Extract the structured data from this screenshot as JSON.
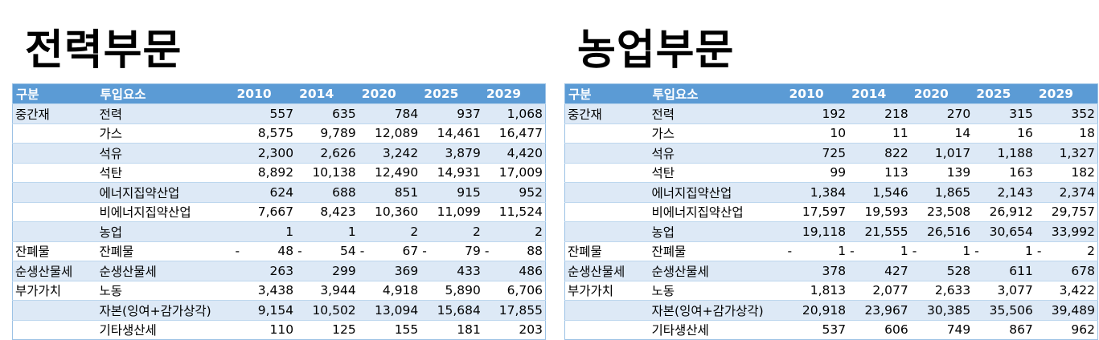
{
  "years": [
    "2010",
    "2014",
    "2020",
    "2025",
    "2029"
  ],
  "headers": {
    "category": "구분",
    "item": "투입요소"
  },
  "panels": [
    {
      "title": "전력부문",
      "rows": [
        {
          "category": "중간재",
          "item": "전력",
          "values": [
            "557",
            "635",
            "784",
            "937",
            "1,068"
          ]
        },
        {
          "category": "",
          "item": "가스",
          "values": [
            "8,575",
            "9,789",
            "12,089",
            "14,461",
            "16,477"
          ]
        },
        {
          "category": "",
          "item": "석유",
          "values": [
            "2,300",
            "2,626",
            "3,242",
            "3,879",
            "4,420"
          ]
        },
        {
          "category": "",
          "item": "석탄",
          "values": [
            "8,892",
            "10,138",
            "12,490",
            "14,931",
            "17,009"
          ]
        },
        {
          "category": "",
          "item": "에너지집약산업",
          "values": [
            "624",
            "688",
            "851",
            "915",
            "952"
          ]
        },
        {
          "category": "",
          "item": "비에너지집약산업",
          "values": [
            "7,667",
            "8,423",
            "10,360",
            "11,099",
            "11,524"
          ]
        },
        {
          "category": "",
          "item": "농업",
          "values": [
            "1",
            "1",
            "2",
            "2",
            "2"
          ]
        },
        {
          "category": "잔폐물",
          "item": "잔폐물",
          "negative": true,
          "values": [
            "48",
            "54",
            "67",
            "79",
            "88"
          ]
        },
        {
          "category": "순생산물세",
          "item": "순생산물세",
          "values": [
            "263",
            "299",
            "369",
            "433",
            "486"
          ]
        },
        {
          "category": "부가가치",
          "item": "노동",
          "values": [
            "3,438",
            "3,944",
            "4,918",
            "5,890",
            "6,706"
          ]
        },
        {
          "category": "",
          "item": "자본(잉여+감가상각)",
          "values": [
            "9,154",
            "10,502",
            "13,094",
            "15,684",
            "17,855"
          ]
        },
        {
          "category": "",
          "item": "기타생산세",
          "values": [
            "110",
            "125",
            "155",
            "181",
            "203"
          ]
        }
      ]
    },
    {
      "title": "농업부문",
      "rows": [
        {
          "category": "중간재",
          "item": "전력",
          "values": [
            "192",
            "218",
            "270",
            "315",
            "352"
          ]
        },
        {
          "category": "",
          "item": "가스",
          "values": [
            "10",
            "11",
            "14",
            "16",
            "18"
          ]
        },
        {
          "category": "",
          "item": "석유",
          "values": [
            "725",
            "822",
            "1,017",
            "1,188",
            "1,327"
          ]
        },
        {
          "category": "",
          "item": "석탄",
          "values": [
            "99",
            "113",
            "139",
            "163",
            "182"
          ]
        },
        {
          "category": "",
          "item": "에너지집약산업",
          "values": [
            "1,384",
            "1,546",
            "1,865",
            "2,143",
            "2,374"
          ]
        },
        {
          "category": "",
          "item": "비에너지집약산업",
          "values": [
            "17,597",
            "19,593",
            "23,508",
            "26,912",
            "29,757"
          ]
        },
        {
          "category": "",
          "item": "농업",
          "values": [
            "19,118",
            "21,555",
            "26,516",
            "30,654",
            "33,992"
          ]
        },
        {
          "category": "잔폐물",
          "item": "잔폐물",
          "negative": true,
          "values": [
            "1",
            "1",
            "1",
            "1",
            "2"
          ]
        },
        {
          "category": "순생산물세",
          "item": "순생산물세",
          "values": [
            "378",
            "427",
            "528",
            "611",
            "678"
          ]
        },
        {
          "category": "부가가치",
          "item": "노동",
          "values": [
            "1,813",
            "2,077",
            "2,633",
            "3,077",
            "3,422"
          ]
        },
        {
          "category": "",
          "item": "자본(잉여+감가상각)",
          "values": [
            "20,918",
            "23,967",
            "30,385",
            "35,506",
            "39,489"
          ]
        },
        {
          "category": "",
          "item": "기타생산세",
          "values": [
            "537",
            "606",
            "749",
            "867",
            "962"
          ]
        }
      ]
    }
  ],
  "negative_sign": "-",
  "colors": {
    "header_bg": "#5b9bd5",
    "band": "#dde9f6",
    "border": "#9cc2e5"
  }
}
